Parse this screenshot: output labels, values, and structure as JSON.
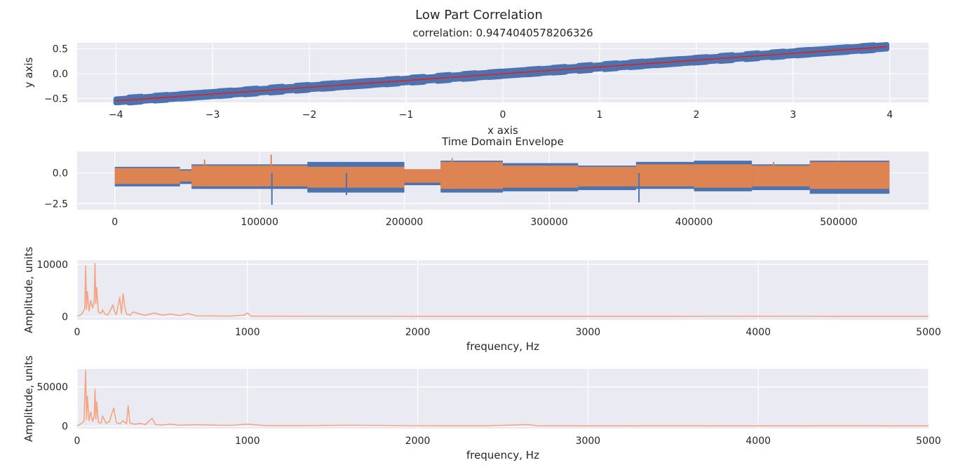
{
  "figure": {
    "suptitle": "Low Part Correlation"
  },
  "colors": {
    "panel_bg": "#eaeaf2",
    "grid": "#ffffff",
    "scatter": "#4c72b0",
    "fit": "#d62728",
    "envelope_a": "#4c72b0",
    "envelope_b": "#dd8452",
    "spectrum": "#f4a582"
  },
  "chart_data": [
    {
      "type": "scatter",
      "title": "correlation: 0.9474040578206326",
      "xlabel": "x axis",
      "ylabel": "y axis",
      "xlim": [
        -4.4,
        4.4
      ],
      "ylim": [
        -0.58,
        0.62
      ],
      "xticks": [
        -4,
        -3,
        -2,
        -1,
        0,
        1,
        2,
        3,
        4
      ],
      "yticks": [
        -0.5,
        0.0,
        0.5
      ],
      "xticklabels": [
        "−4",
        "−3",
        "−2",
        "−1",
        "0",
        "1",
        "2",
        "3",
        "4"
      ],
      "yticklabels": [
        "−0.5",
        "0.0",
        "0.5"
      ],
      "x_range": [
        -4,
        3.97
      ],
      "fit_line": {
        "x": [
          -4,
          3.97
        ],
        "y": [
          -0.55,
          0.54
        ]
      },
      "band_halfwidth": 0.05,
      "grid": true
    },
    {
      "type": "line",
      "title": "Time Domain Envelope",
      "xlabel": "",
      "ylabel": "",
      "xlim": [
        -26000,
        562000
      ],
      "ylim": [
        -3.0,
        1.75
      ],
      "xticks": [
        0,
        100000,
        200000,
        300000,
        400000,
        500000
      ],
      "yticks": [
        -2.5,
        0.0
      ],
      "xticklabels": [
        "0",
        "100000",
        "200000",
        "300000",
        "400000",
        "500000"
      ],
      "yticklabels": [
        "−2.5",
        "0.0"
      ],
      "x_range": [
        0,
        535000
      ],
      "segments_a": [
        {
          "x": [
            0,
            45000
          ],
          "upper": 0.5,
          "lower": -1.1
        },
        {
          "x": [
            45000,
            53000
          ],
          "upper": 0.3,
          "lower": -0.9
        },
        {
          "x": [
            53000,
            133000
          ],
          "upper": 0.7,
          "lower": -1.3
        },
        {
          "x": [
            133000,
            200000
          ],
          "upper": 0.9,
          "lower": -1.6
        },
        {
          "x": [
            200000,
            225000
          ],
          "upper": 0.3,
          "lower": -1.0
        },
        {
          "x": [
            225000,
            268000
          ],
          "upper": 1.0,
          "lower": -1.6
        },
        {
          "x": [
            268000,
            320000
          ],
          "upper": 0.8,
          "lower": -1.5
        },
        {
          "x": [
            320000,
            360000
          ],
          "upper": 0.6,
          "lower": -1.4
        },
        {
          "x": [
            360000,
            400000
          ],
          "upper": 0.9,
          "lower": -1.3
        },
        {
          "x": [
            400000,
            440000
          ],
          "upper": 1.0,
          "lower": -1.5
        },
        {
          "x": [
            440000,
            480000
          ],
          "upper": 0.7,
          "lower": -1.4
        },
        {
          "x": [
            480000,
            535000
          ],
          "upper": 1.0,
          "lower": -1.7
        }
      ],
      "segments_b": [
        {
          "x": [
            0,
            45000
          ],
          "upper": 0.4,
          "lower": -0.9
        },
        {
          "x": [
            45000,
            53000
          ],
          "upper": 0.2,
          "lower": -0.7
        },
        {
          "x": [
            53000,
            133000
          ],
          "upper": 0.6,
          "lower": -1.1
        },
        {
          "x": [
            133000,
            200000
          ],
          "upper": 0.5,
          "lower": -1.2
        },
        {
          "x": [
            200000,
            225000
          ],
          "upper": 0.3,
          "lower": -0.8
        },
        {
          "x": [
            225000,
            268000
          ],
          "upper": 0.9,
          "lower": -1.3
        },
        {
          "x": [
            268000,
            320000
          ],
          "upper": 0.6,
          "lower": -1.2
        },
        {
          "x": [
            320000,
            360000
          ],
          "upper": 0.5,
          "lower": -1.1
        },
        {
          "x": [
            360000,
            400000
          ],
          "upper": 0.7,
          "lower": -1.1
        },
        {
          "x": [
            400000,
            440000
          ],
          "upper": 0.7,
          "lower": -1.2
        },
        {
          "x": [
            440000,
            480000
          ],
          "upper": 0.6,
          "lower": -1.1
        },
        {
          "x": [
            480000,
            535000
          ],
          "upper": 0.9,
          "lower": -1.3
        }
      ],
      "spikes": [
        {
          "x": 108000,
          "y": 1.5
        },
        {
          "x": 108500,
          "y": -2.6
        },
        {
          "x": 160000,
          "y": -1.8
        },
        {
          "x": 362000,
          "y": -2.4
        },
        {
          "x": 233000,
          "y": 1.2
        },
        {
          "x": 455000,
          "y": 0.9
        },
        {
          "x": 62000,
          "y": 1.1
        }
      ],
      "grid": true
    },
    {
      "type": "line",
      "title": "",
      "xlabel": "frequency, Hz",
      "ylabel": "Amplitude, units",
      "xlim": [
        0,
        5000
      ],
      "ylim": [
        -600,
        10800
      ],
      "xticks": [
        0,
        1000,
        2000,
        3000,
        4000,
        5000
      ],
      "yticks": [
        0,
        10000
      ],
      "xticklabels": [
        "0",
        "1000",
        "2000",
        "3000",
        "4000",
        "5000"
      ],
      "yticklabels": [
        "0",
        "10000"
      ],
      "x": [
        0,
        20,
        35,
        45,
        50,
        55,
        60,
        70,
        80,
        90,
        100,
        105,
        110,
        115,
        125,
        140,
        150,
        160,
        170,
        180,
        200,
        210,
        220,
        230,
        250,
        260,
        270,
        280,
        290,
        310,
        330,
        360,
        400,
        450,
        500,
        550,
        600,
        650,
        700,
        800,
        900,
        980,
        1000,
        1020,
        1200,
        1500,
        1800,
        2000,
        2500,
        3000,
        3500,
        4000,
        4500,
        5000
      ],
      "y": [
        80,
        300,
        900,
        1600,
        9700,
        1400,
        4800,
        1100,
        3100,
        1700,
        2700,
        10200,
        2500,
        5600,
        900,
        600,
        1300,
        700,
        400,
        350,
        1500,
        2300,
        900,
        400,
        3700,
        600,
        4400,
        1800,
        500,
        300,
        900,
        600,
        250,
        700,
        300,
        500,
        200,
        600,
        150,
        120,
        100,
        300,
        700,
        100,
        90,
        70,
        70,
        60,
        60,
        60,
        60,
        80,
        60,
        60
      ],
      "grid": true
    },
    {
      "type": "line",
      "title": "",
      "xlabel": "frequency, Hz",
      "ylabel": "Amplitude, units",
      "xlim": [
        0,
        5000
      ],
      "ylim": [
        -3000,
        73000
      ],
      "xticks": [
        0,
        1000,
        2000,
        3000,
        4000,
        5000
      ],
      "yticks": [
        0,
        50000
      ],
      "xticklabels": [
        "0",
        "1000",
        "2000",
        "3000",
        "4000",
        "5000"
      ],
      "yticklabels": [
        "0",
        "50000"
      ],
      "x": [
        0,
        15,
        30,
        40,
        50,
        55,
        60,
        70,
        80,
        90,
        100,
        105,
        110,
        115,
        125,
        140,
        150,
        170,
        190,
        205,
        215,
        230,
        250,
        270,
        290,
        300,
        310,
        340,
        370,
        400,
        440,
        460,
        500,
        550,
        600,
        700,
        800,
        900,
        1000,
        1100,
        1300,
        1600,
        2000,
        2400,
        2650,
        2700,
        3000,
        3500,
        4000,
        4500,
        5000
      ],
      "y": [
        500,
        2000,
        4500,
        6000,
        71000,
        8000,
        38000,
        7000,
        18000,
        6000,
        12000,
        47000,
        9000,
        31000,
        5000,
        4000,
        13000,
        3500,
        6000,
        17000,
        23000,
        5000,
        3000,
        7000,
        3000,
        26000,
        4000,
        2500,
        3500,
        2000,
        10000,
        2000,
        1500,
        2500,
        1200,
        1800,
        1300,
        1000,
        2500,
        800,
        700,
        1200,
        600,
        500,
        2000,
        500,
        400,
        500,
        400,
        500,
        400
      ],
      "grid": true
    }
  ]
}
